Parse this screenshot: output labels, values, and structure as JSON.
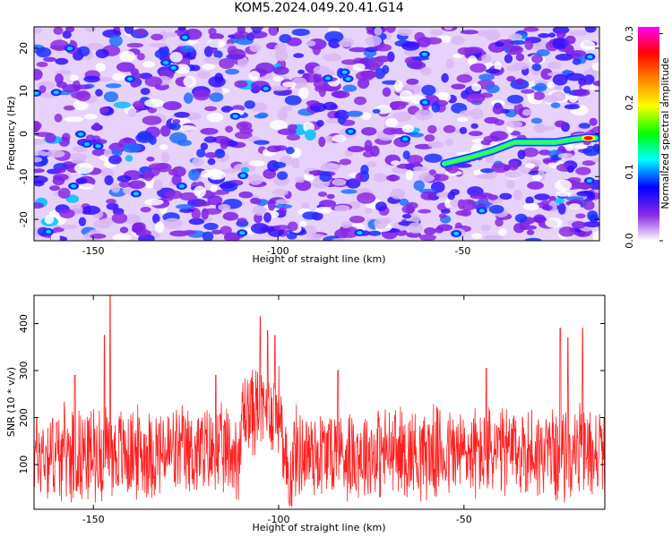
{
  "title": "KOM5.2024.049.20.41.G14",
  "chart_data": [
    {
      "type": "heatmap",
      "xlabel": "Height of straight line (km)",
      "ylabel": "Frequency (Hz)",
      "xlim": [
        -166,
        -13
      ],
      "ylim": [
        -25,
        25
      ],
      "xticks": [
        -150,
        -100,
        -50
      ],
      "yticks": [
        -20,
        -10,
        0,
        10,
        20
      ],
      "colorbar": {
        "label": "Normalized spectral amplitude",
        "range": [
          0,
          0.31
        ],
        "ticks": [
          0.0,
          0.1,
          0.2,
          0.3
        ],
        "colormap": [
          "#ffffff",
          "#8a2be2",
          "#0000ff",
          "#00ffff",
          "#00ff00",
          "#ffff00",
          "#ff8000",
          "#ff0000",
          "#ff00ff"
        ]
      },
      "signal_track": {
        "x": [
          -55,
          -48,
          -42,
          -36,
          -30,
          -25,
          -20,
          -17,
          -14
        ],
        "y": [
          -7,
          -5.5,
          -4,
          -2,
          -2,
          -2,
          -1.3,
          -1,
          -1
        ],
        "peak_amplitude": 0.31
      }
    },
    {
      "type": "line",
      "xlabel": "Height of straight line (km)",
      "ylabel": "SNR (10 * v/v)",
      "xlim": [
        -166,
        -12
      ],
      "ylim": [
        5,
        460
      ],
      "xticks": [
        -150,
        -100,
        -50
      ],
      "yticks": [
        100,
        200,
        300,
        400
      ],
      "color": "#ff2020",
      "baseline_mean": 125,
      "peaks": [
        {
          "x": -145.5,
          "y": 460
        },
        {
          "x": -147,
          "y": 375
        },
        {
          "x": -105,
          "y": 415
        },
        {
          "x": -103,
          "y": 385
        },
        {
          "x": -101,
          "y": 375
        },
        {
          "x": -155,
          "y": 290
        },
        {
          "x": -117,
          "y": 290
        },
        {
          "x": -24,
          "y": 390
        },
        {
          "x": -22,
          "y": 370
        },
        {
          "x": -18,
          "y": 390
        },
        {
          "x": -84,
          "y": 300
        },
        {
          "x": -44,
          "y": 305
        }
      ]
    }
  ]
}
